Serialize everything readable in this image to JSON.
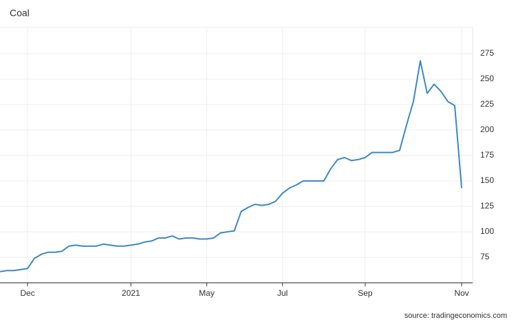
{
  "chart_data": {
    "type": "line",
    "title": "Coal",
    "source": "source: tradingeconomics.com",
    "categories": [
      null,
      null,
      null,
      null,
      "Dec",
      null,
      null,
      null,
      null,
      null,
      null,
      null,
      null,
      null,
      null,
      null,
      null,
      null,
      null,
      "2021",
      null,
      null,
      null,
      null,
      null,
      null,
      null,
      null,
      null,
      null,
      "May",
      null,
      null,
      null,
      null,
      null,
      null,
      null,
      null,
      null,
      null,
      "Jul",
      null,
      null,
      null,
      null,
      null,
      null,
      null,
      null,
      null,
      null,
      null,
      "Sep",
      null,
      null,
      null,
      null,
      null,
      null,
      null,
      null,
      null,
      null,
      null,
      null,
      null,
      "Nov"
    ],
    "values": [
      61,
      62,
      62,
      63,
      64,
      74,
      78,
      80,
      80,
      81,
      86,
      87,
      86,
      86,
      86,
      88,
      87,
      86,
      86,
      87,
      88,
      90,
      91,
      94,
      94,
      96,
      93,
      94,
      94,
      93,
      93,
      94,
      99,
      100,
      101,
      120,
      124,
      127,
      126,
      127,
      130,
      138,
      143,
      146,
      150,
      150,
      150,
      150,
      162,
      171,
      173,
      170,
      171,
      173,
      178,
      178,
      178,
      178,
      180,
      205,
      228,
      268,
      236,
      245,
      238,
      228,
      224,
      143
    ],
    "color": "#3b88c4",
    "ylim": [
      50,
      300
    ],
    "yticks": [
      75,
      100,
      125,
      150,
      175,
      200,
      225,
      250,
      275
    ],
    "grid": true
  }
}
